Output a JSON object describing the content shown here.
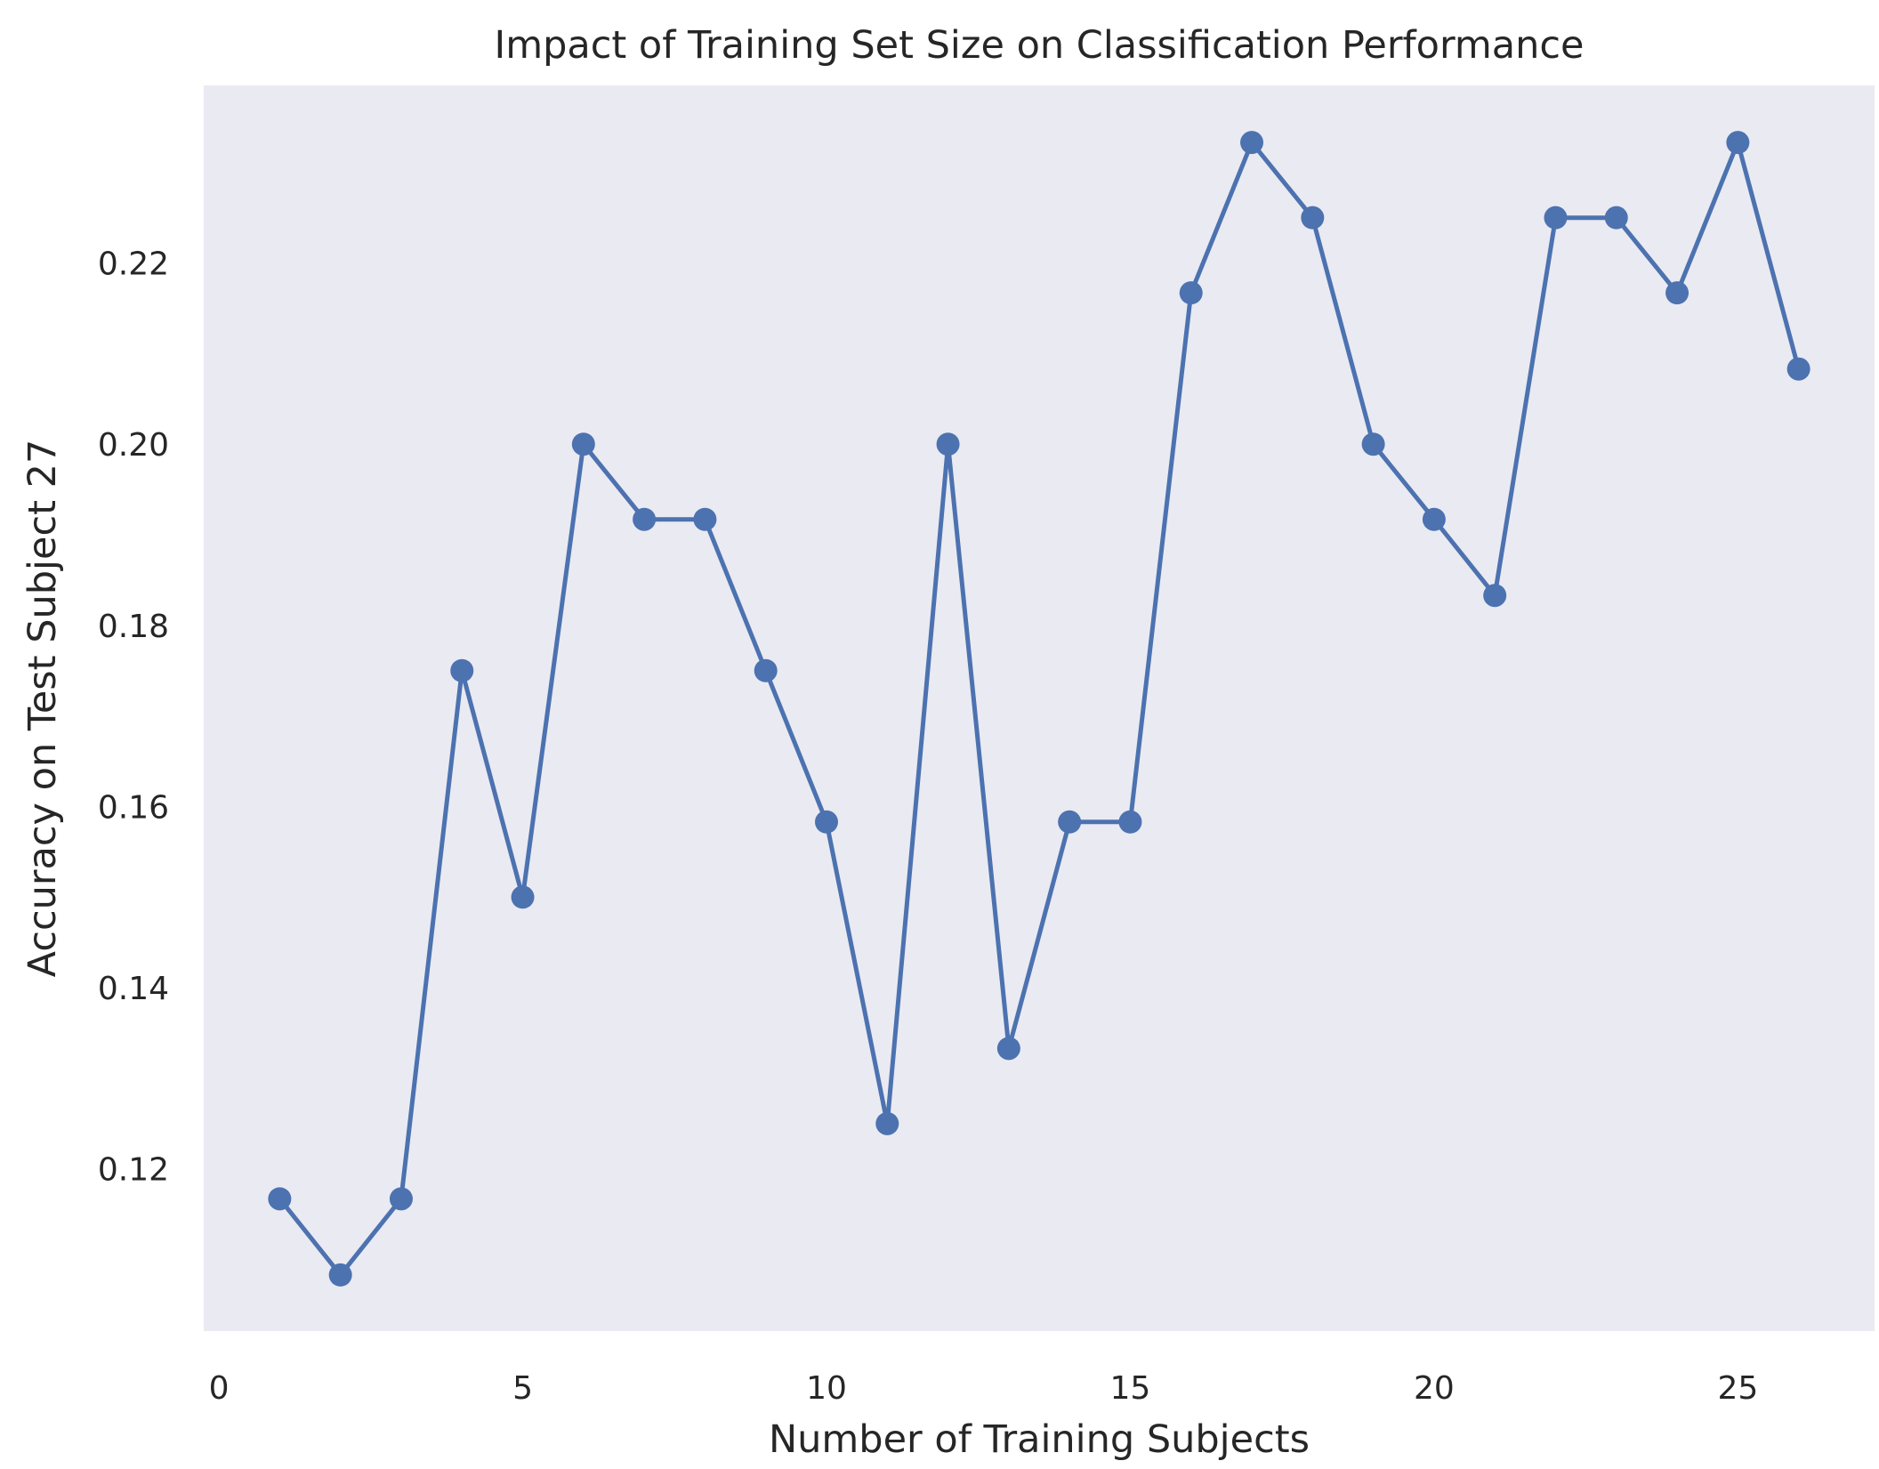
{
  "chart_data": {
    "type": "line",
    "title": "Impact of Training Set Size on Classification Performance",
    "xlabel": "Number of Training Subjects",
    "ylabel": "Accuracy on Test Subject 27",
    "xlim": [
      -0.25,
      27.25
    ],
    "ylim": [
      0.1021,
      0.2396
    ],
    "xticks": [
      0,
      5,
      10,
      15,
      20,
      25
    ],
    "xtick_labels": [
      "0",
      "5",
      "10",
      "15",
      "20",
      "25"
    ],
    "yticks": [
      0.12,
      0.14,
      0.16,
      0.18,
      0.2,
      0.22
    ],
    "ytick_labels": [
      "0.12",
      "0.14",
      "0.16",
      "0.18",
      "0.20",
      "0.22"
    ],
    "grid": false,
    "colors": {
      "line": "#4c72b0",
      "plot_background": "#eaeaf2",
      "text": "#262626"
    },
    "x": [
      1,
      2,
      3,
      4,
      5,
      6,
      7,
      8,
      9,
      10,
      11,
      12,
      13,
      14,
      15,
      16,
      17,
      18,
      19,
      20,
      21,
      22,
      23,
      24,
      25,
      26
    ],
    "y": [
      0.1167,
      0.1083,
      0.1167,
      0.175,
      0.15,
      0.2,
      0.1917,
      0.1917,
      0.175,
      0.1583,
      0.125,
      0.2,
      0.1333,
      0.1583,
      0.1583,
      0.2167,
      0.2333,
      0.225,
      0.2,
      0.1917,
      0.1833,
      0.225,
      0.225,
      0.2167,
      0.2333,
      0.2083
    ]
  }
}
